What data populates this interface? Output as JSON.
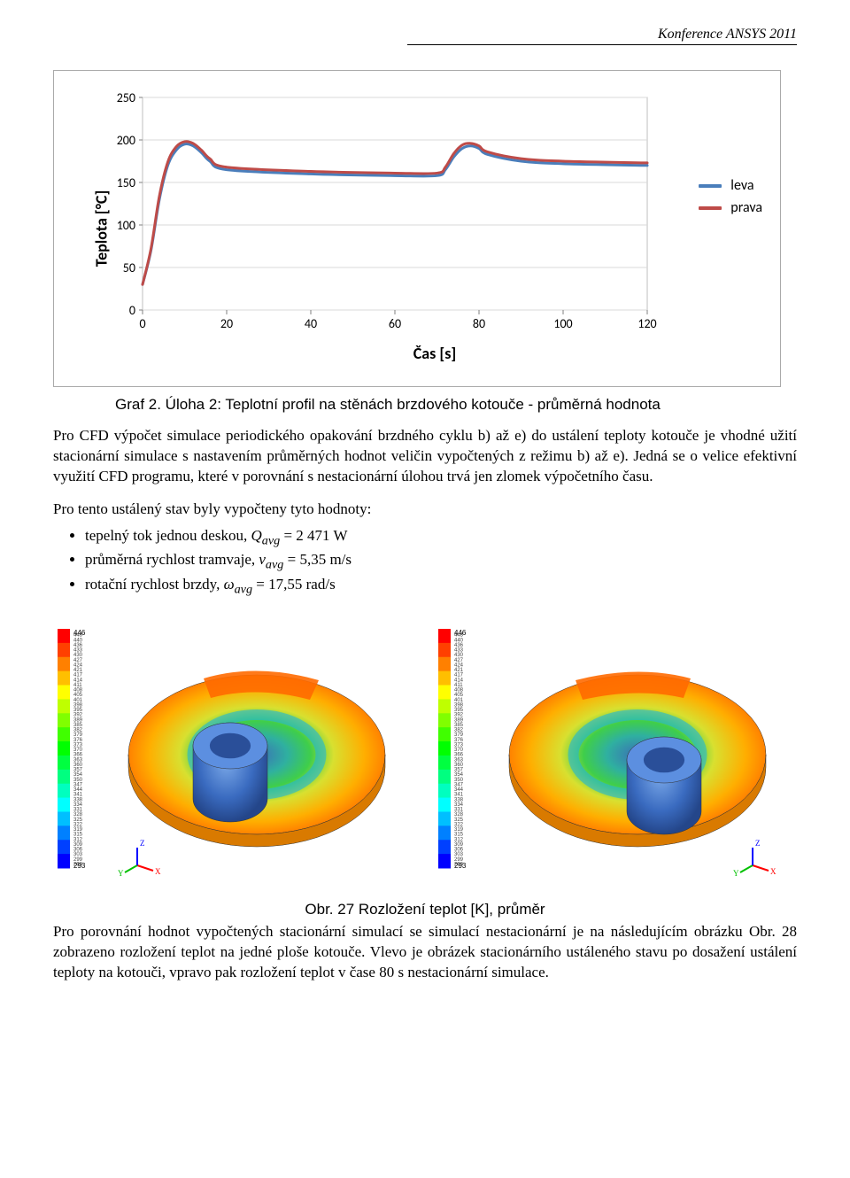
{
  "header": {
    "conference": "Konference ANSYS 2011"
  },
  "chart": {
    "type": "line",
    "title": "",
    "xlabel": "Čas [s]",
    "ylabel": "Teplota [°C]",
    "y_ticks": [
      0,
      50,
      100,
      150,
      200,
      250
    ],
    "x_ticks": [
      0,
      20,
      40,
      60,
      80,
      100,
      120
    ],
    "xlim": [
      0,
      120
    ],
    "ylim": [
      0,
      250
    ],
    "label_font": "Calibri",
    "label_fontsize": 18,
    "label_weight": "bold",
    "tick_fontsize": 14,
    "tick_color": "#000000",
    "grid_color": "#d9d9d9",
    "grid_width": 1,
    "border_color": "#bfbfbf",
    "background_color": "#ffffff",
    "line_width": 3,
    "series": [
      {
        "name": "leva",
        "color": "#4a7ebb",
        "x": [
          0,
          2,
          4,
          6,
          8,
          10,
          12,
          14,
          16,
          20,
          40,
          60,
          70,
          72,
          74,
          76,
          78,
          80,
          82,
          90,
          100,
          120
        ],
        "y": [
          30,
          70,
          130,
          170,
          188,
          195,
          193,
          185,
          175,
          165,
          160,
          158,
          158,
          165,
          180,
          190,
          193,
          190,
          183,
          175,
          172,
          170
        ]
      },
      {
        "name": "prava",
        "color": "#be4b48",
        "x": [
          0,
          2,
          4,
          6,
          8,
          10,
          12,
          14,
          16,
          20,
          40,
          60,
          70,
          72,
          74,
          76,
          78,
          80,
          82,
          90,
          100,
          120
        ],
        "y": [
          30,
          72,
          134,
          174,
          192,
          198,
          196,
          188,
          178,
          168,
          163,
          161,
          161,
          168,
          184,
          194,
          196,
          193,
          186,
          178,
          175,
          173
        ]
      }
    ],
    "legend": {
      "position": "right",
      "items": [
        {
          "label": "leva",
          "color": "#4a7ebb"
        },
        {
          "label": "prava",
          "color": "#be4b48"
        }
      ]
    }
  },
  "caption1": "Graf 2. Úloha 2: Teplotní profil na stěnách brzdového kotouče - průměrná hodnota",
  "para1": "Pro CFD výpočet simulace periodického opakování brzdného cyklu b) až e) do ustálení teploty kotouče je vhodné užití stacionární simulace s nastavením průměrných hodnot veličin vypočtených z režimu b) až e). Jedná se o velice efektivní využití CFD programu, které v porovnání s nestacionární úlohou trvá jen zlomek výpočetního času.",
  "para2": "Pro tento ustálený stav byly vypočteny tyto hodnoty:",
  "bullets": [
    "tepelný tok jednou deskou, Q_avg = 2 471 W",
    "průměrná rychlost tramvaje, v_avg = 5,35 m/s",
    "rotační rychlost brzdy, ω_avg = 17,55 rad/s"
  ],
  "sim_images": {
    "legend_min": 293,
    "legend_max": 446,
    "legend_bar_colors": [
      "#ff0000",
      "#ff4000",
      "#ff8000",
      "#ffbf00",
      "#ffff00",
      "#bfff00",
      "#80ff00",
      "#40ff00",
      "#00ff00",
      "#00ff40",
      "#00ff80",
      "#00ffbf",
      "#00ffff",
      "#00bfff",
      "#0080ff",
      "#0040ff",
      "#0000ff"
    ],
    "axis_triad": {
      "x_color": "#ff0000",
      "y_color": "#00c000",
      "z_color": "#0000ff"
    }
  },
  "fig_caption": "Obr. 27 Rozložení teplot [K], průměr",
  "para3": "Pro porovnání hodnot vypočtených stacionární simulací se simulací nestacionární je na následujícím obrázku Obr. 28 zobrazeno rozložení teplot na jedné ploše kotouče. Vlevo je obrázek stacionárního ustáleného stavu po dosažení ustálení teploty na kotouči, vpravo pak rozložení teplot v čase 80 s nestacionární simulace."
}
